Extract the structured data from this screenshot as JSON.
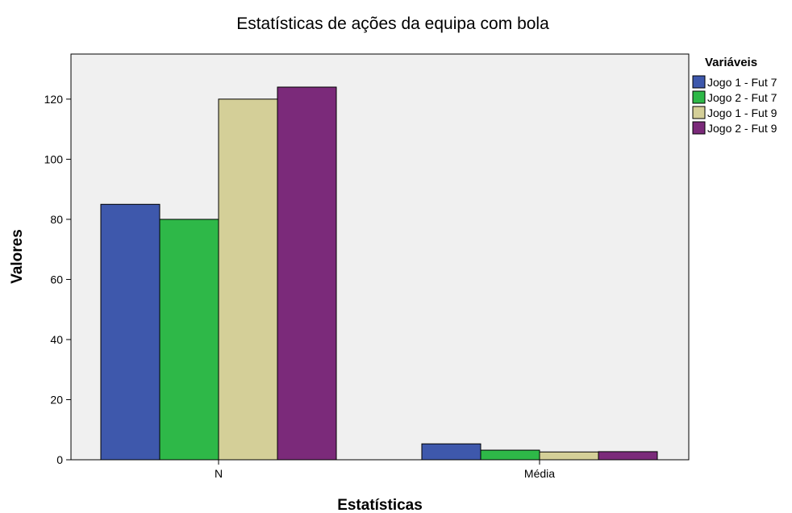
{
  "chart_data": {
    "type": "bar",
    "title": "Estatísticas de ações da equipa com bola",
    "xlabel": "Estatísticas",
    "ylabel": "Valores",
    "categories": [
      "N",
      "Média"
    ],
    "ylim": [
      0,
      135
    ],
    "yticks": [
      0,
      20,
      40,
      60,
      80,
      100,
      120
    ],
    "legend_title": "Variáveis",
    "legend_position": "right",
    "grid": false,
    "plot_background": "#f0f0f0",
    "series": [
      {
        "name": "Jogo 1 - Fut 7",
        "color": "#3e58ac",
        "values": [
          85,
          5.3
        ]
      },
      {
        "name": "Jogo 2 - Fut 7",
        "color": "#2eb848",
        "values": [
          80,
          3.2
        ]
      },
      {
        "name": "Jogo 1 - Fut 9",
        "color": "#d4cf98",
        "values": [
          120,
          2.6
        ]
      },
      {
        "name": "Jogo 2 - Fut 9",
        "color": "#7b2a7a",
        "values": [
          124,
          2.7
        ]
      }
    ]
  }
}
